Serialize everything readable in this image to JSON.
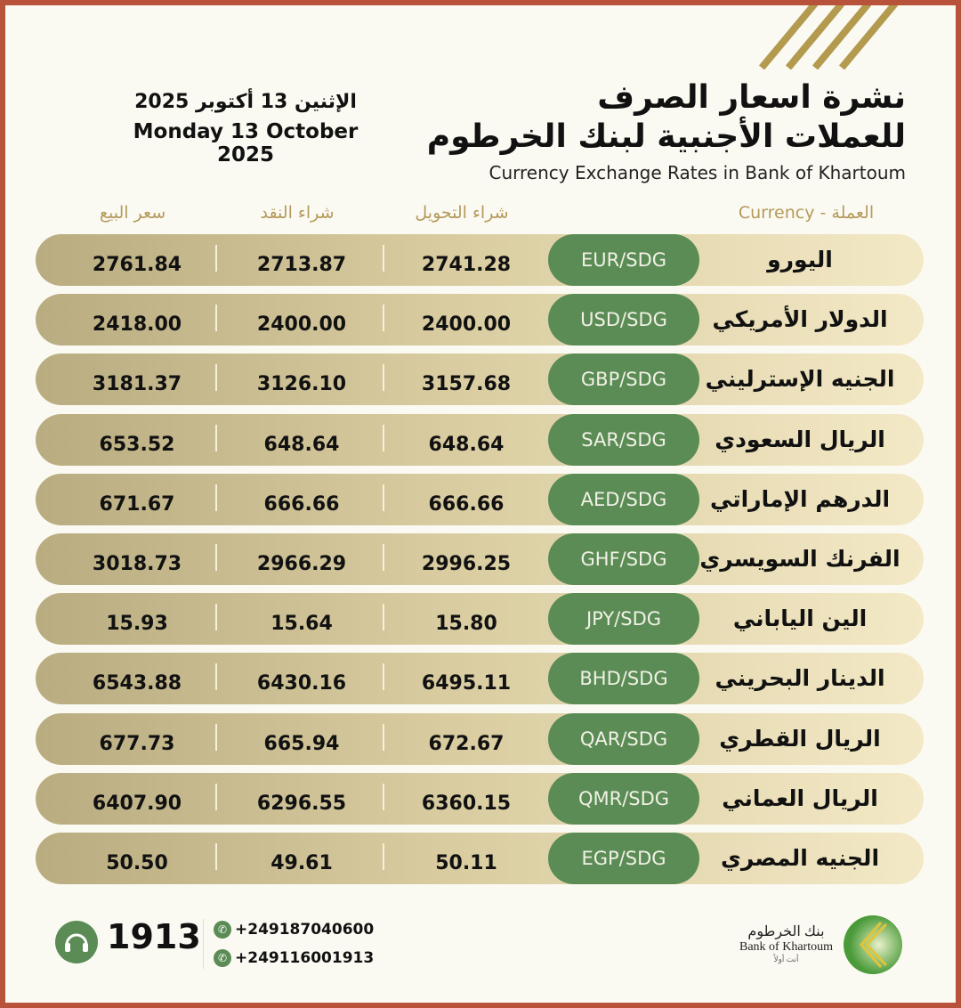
{
  "header": {
    "title_line1": "نشرة اسعار الصرف",
    "title_line2": "للعملات الأجنبية لبنك الخرطوم",
    "subtitle": "Currency Exchange Rates in Bank of Khartoum",
    "date_ar": "الإثنين 13 أكتوبر 2025",
    "date_en": "Monday 13 October 2025"
  },
  "columns": {
    "currency": "Currency - العملة",
    "transfer_buy": "شراء التحويل",
    "cash_buy": "شراء النقد",
    "sell": "سعر البيع"
  },
  "rows": [
    {
      "name": "اليورو",
      "code": "EUR/SDG",
      "transfer_buy": "2741.28",
      "cash_buy": "2713.87",
      "sell": "2761.84"
    },
    {
      "name": "الدولار الأمريكي",
      "code": "USD/SDG",
      "transfer_buy": "2400.00",
      "cash_buy": "2400.00",
      "sell": "2418.00"
    },
    {
      "name": "الجنيه الإسترليني",
      "code": "GBP/SDG",
      "transfer_buy": "3157.68",
      "cash_buy": "3126.10",
      "sell": "3181.37"
    },
    {
      "name": "الريال السعودي",
      "code": "SAR/SDG",
      "transfer_buy": "648.64",
      "cash_buy": "648.64",
      "sell": "653.52"
    },
    {
      "name": "الدرهم الإماراتي",
      "code": "AED/SDG",
      "transfer_buy": "666.66",
      "cash_buy": "666.66",
      "sell": "671.67"
    },
    {
      "name": "الفرنك السويسري",
      "code": "GHF/SDG",
      "transfer_buy": "2996.25",
      "cash_buy": "2966.29",
      "sell": "3018.73"
    },
    {
      "name": "الين الياباني",
      "code": "JPY/SDG",
      "transfer_buy": "15.80",
      "cash_buy": "15.64",
      "sell": "15.93"
    },
    {
      "name": "الدينار البحريني",
      "code": "BHD/SDG",
      "transfer_buy": "6495.11",
      "cash_buy": "6430.16",
      "sell": "6543.88"
    },
    {
      "name": "الريال القطري",
      "code": "QAR/SDG",
      "transfer_buy": "672.67",
      "cash_buy": "665.94",
      "sell": "677.73"
    },
    {
      "name": "الريال العماني",
      "code": "QMR/SDG",
      "transfer_buy": "6360.15",
      "cash_buy": "6296.55",
      "sell": "6407.90"
    },
    {
      "name": "الجنيه المصري",
      "code": "EGP/SDG",
      "transfer_buy": "50.11",
      "cash_buy": "49.61",
      "sell": "50.50"
    }
  ],
  "footer": {
    "hotline": "1913",
    "phone": "+249187040600",
    "whatsapp": "+249116001913",
    "logo_ar": "بنك الخرطوم",
    "logo_en": "Bank of Khartoum",
    "logo_tagline": "أنت أولاً"
  },
  "colors": {
    "accent_green": "#5b8c55",
    "gold": "#b49a5c",
    "border": "#b8523a"
  }
}
